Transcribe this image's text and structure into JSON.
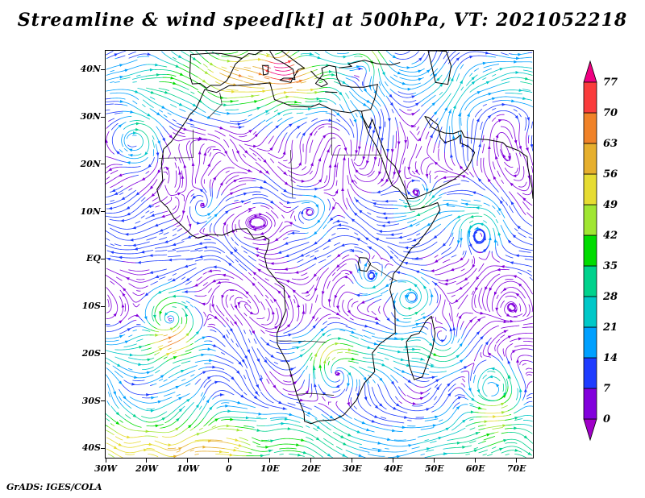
{
  "title": "Streamline & wind speed[kt] at 500hPa, VT: 2021052218",
  "credit": "GrADS: IGES/COLA",
  "chart_data": {
    "type": "streamline",
    "title": "Streamline & wind speed[kt] at 500hPa, VT: 2021052218",
    "variable": "wind speed",
    "units": "kt",
    "pressure_level": "500hPa",
    "valid_time": "2021052218",
    "region": {
      "lon_min": -30,
      "lon_max": 74,
      "lat_min": -42,
      "lat_max": 44
    },
    "x_tick_labels": [
      "30W",
      "20W",
      "10W",
      "0",
      "10E",
      "20E",
      "30E",
      "40E",
      "50E",
      "60E",
      "70E"
    ],
    "x_tick_lons": [
      -30,
      -20,
      -10,
      0,
      10,
      20,
      30,
      40,
      50,
      60,
      70
    ],
    "y_tick_labels": [
      "40N",
      "30N",
      "20N",
      "10N",
      "EQ",
      "10S",
      "20S",
      "30S",
      "40S"
    ],
    "y_tick_lats": [
      40,
      30,
      20,
      10,
      0,
      -10,
      -20,
      -30,
      -40
    ],
    "grid": false,
    "legend_position": "right",
    "colorbar": {
      "orientation": "vertical",
      "levels": [
        0,
        7,
        14,
        21,
        28,
        35,
        42,
        49,
        56,
        63,
        70,
        77
      ],
      "colors": [
        "#a000c8",
        "#8200dc",
        "#1e3cff",
        "#00a0ff",
        "#00c8c8",
        "#00d28c",
        "#00dc00",
        "#a0e632",
        "#e6dc32",
        "#e6af2d",
        "#f08228",
        "#fa3c3c",
        "#f00082"
      ],
      "label_color": "#1a1a1a"
    }
  }
}
